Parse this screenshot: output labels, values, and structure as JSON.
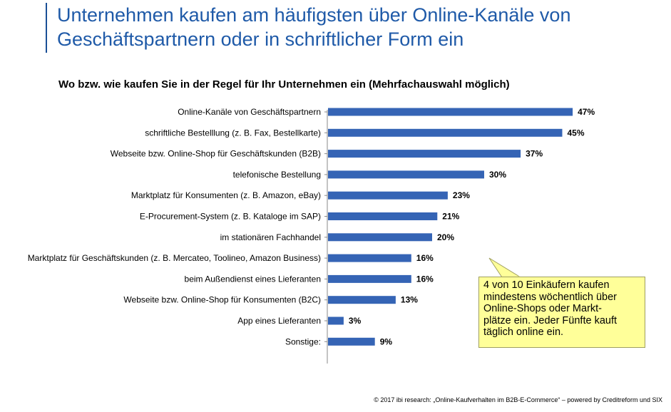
{
  "header": {
    "title": "Unternehmen kaufen am häufigsten über Online-Kanäle von Geschäftspartnern oder in schriftlicher Form ein"
  },
  "colors": {
    "title": "#1f5aa8",
    "bar": "#3564b5",
    "callout_bg": "#ffff99"
  },
  "chart_data": {
    "type": "bar",
    "orientation": "horizontal",
    "title": "Wo bzw. wie kaufen Sie in der Regel für Ihr Unternehmen ein (Mehrfachauswahl möglich)",
    "categories": [
      "Online-Kanäle von Geschäftspartnern",
      "schriftliche Bestelllung (z. B. Fax, Bestellkarte)",
      "Webseite bzw. Online-Shop für Geschäftskunden (B2B)",
      "telefonische Bestellung",
      "Marktplatz für Konsumenten (z. B. Amazon, eBay)",
      "E-Procurement-System (z. B. Kataloge im SAP)",
      "im stationären Fachhandel",
      "Marktplatz für Geschäftskunden (z. B. Mercateo, Toolineo, Amazon Business)",
      "beim Außendienst eines Lieferanten",
      "Webseite bzw. Online-Shop für Konsumenten (B2C)",
      "App eines Lieferanten",
      "Sonstige:"
    ],
    "values": [
      47,
      45,
      37,
      30,
      23,
      21,
      20,
      16,
      16,
      13,
      3,
      9
    ],
    "value_labels": [
      "47%",
      "45%",
      "37%",
      "30%",
      "23%",
      "21%",
      "20%",
      "16%",
      "16%",
      "13%",
      "3%",
      "9%"
    ],
    "xlim": [
      0,
      50
    ],
    "grid": false,
    "annotation": "4 von 10 Einkäufern kaufen\nmindestens wöchentlich über\nOnline-Shops oder Markt-\nplätze ein. Jeder Fünfte kauft\ntäglich online ein."
  },
  "footer": {
    "source": "© 2017 ibi research: „Online-Kaufverhalten im B2B-E-Commerce“ – powered by Creditreform und SIX"
  }
}
